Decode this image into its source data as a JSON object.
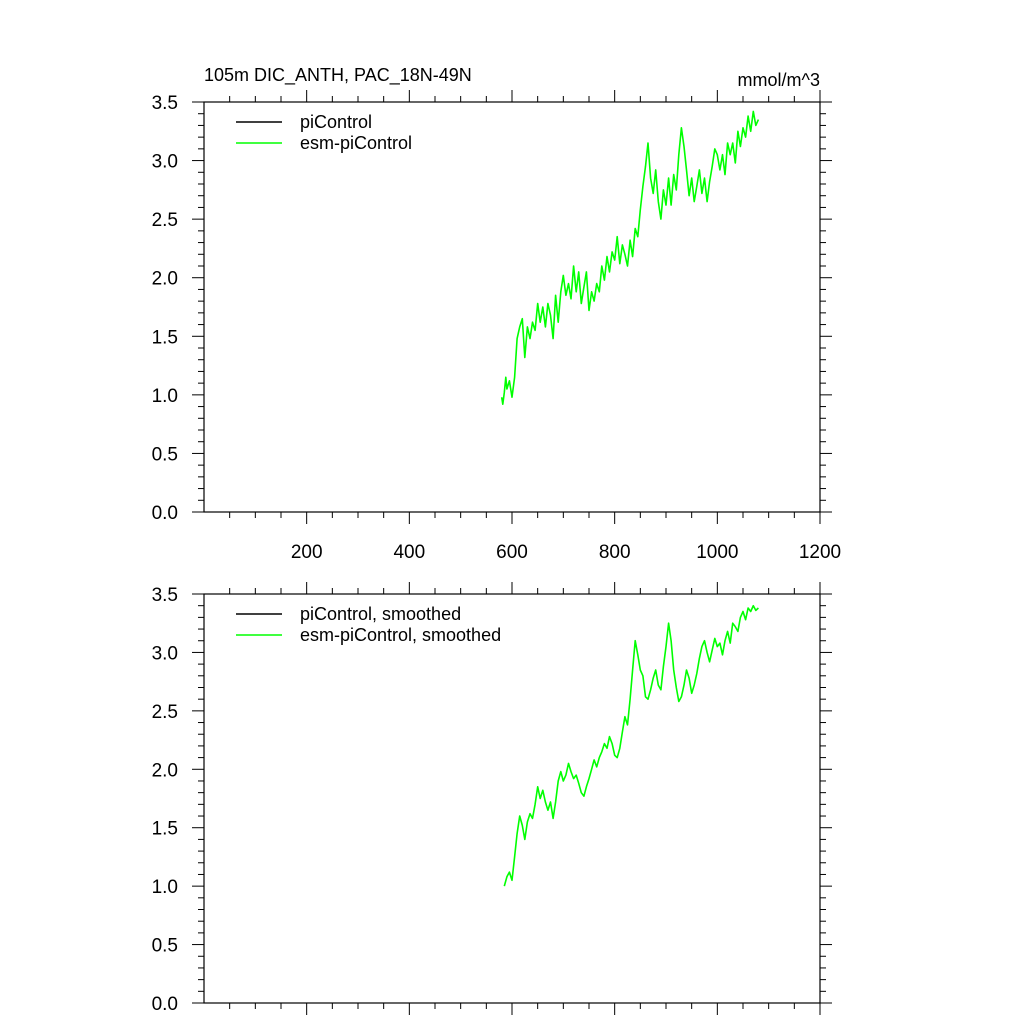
{
  "figure": {
    "title": "105m DIC_ANTH, PAC_18N-49N",
    "units": "mmol/m^3"
  },
  "colors": {
    "picontrol": "#000000",
    "esm_picontrol": "#00ff00",
    "axes": "#000000"
  },
  "chart_data": [
    {
      "type": "line",
      "panel": "top",
      "title": "105m DIC_ANTH, PAC_18N-49N",
      "units": "mmol/m^3",
      "xlim": [
        0,
        1200
      ],
      "ylim": [
        0.0,
        3.5
      ],
      "x_ticks": [
        200,
        400,
        600,
        800,
        1000,
        1200
      ],
      "x_tick_labels": [
        "200",
        "400",
        "600",
        "800",
        "1000",
        "1200"
      ],
      "y_ticks": [
        0.0,
        0.5,
        1.0,
        1.5,
        2.0,
        2.5,
        3.0,
        3.5
      ],
      "y_tick_labels": [
        "0.0",
        "0.5",
        "1.0",
        "1.5",
        "2.0",
        "2.5",
        "3.0",
        "3.5"
      ],
      "legend_position": "top-left",
      "series": [
        {
          "name": "piControl",
          "color": "#000000",
          "x": [],
          "values": []
        },
        {
          "name": "esm-piControl",
          "color": "#00ff00",
          "x": [
            580,
            582,
            585,
            588,
            590,
            595,
            600,
            605,
            610,
            615,
            620,
            625,
            630,
            635,
            640,
            645,
            650,
            655,
            660,
            665,
            670,
            675,
            680,
            685,
            690,
            695,
            700,
            705,
            710,
            715,
            720,
            725,
            730,
            735,
            740,
            745,
            750,
            755,
            760,
            765,
            770,
            775,
            780,
            785,
            790,
            795,
            800,
            805,
            810,
            815,
            820,
            825,
            830,
            835,
            840,
            845,
            850,
            855,
            860,
            865,
            870,
            875,
            880,
            885,
            890,
            895,
            900,
            905,
            910,
            915,
            920,
            925,
            930,
            935,
            940,
            945,
            950,
            955,
            960,
            965,
            970,
            975,
            980,
            985,
            990,
            995,
            1000,
            1005,
            1010,
            1015,
            1020,
            1025,
            1030,
            1035,
            1040,
            1045,
            1050,
            1055,
            1060,
            1065,
            1070,
            1075,
            1080
          ],
          "values": [
            0.98,
            0.92,
            1.02,
            1.15,
            1.05,
            1.12,
            0.98,
            1.15,
            1.48,
            1.58,
            1.65,
            1.32,
            1.58,
            1.48,
            1.62,
            1.55,
            1.78,
            1.62,
            1.75,
            1.58,
            1.78,
            1.68,
            1.48,
            1.85,
            1.62,
            1.88,
            2.02,
            1.85,
            1.95,
            1.82,
            2.1,
            1.88,
            2.05,
            1.78,
            1.92,
            2.05,
            1.72,
            1.88,
            1.8,
            1.95,
            1.88,
            2.1,
            1.98,
            2.18,
            2.05,
            2.22,
            2.15,
            2.35,
            2.12,
            2.28,
            2.2,
            2.1,
            2.32,
            2.18,
            2.42,
            2.35,
            2.58,
            2.78,
            2.95,
            3.15,
            2.85,
            2.72,
            2.92,
            2.65,
            2.5,
            2.75,
            2.62,
            2.85,
            2.62,
            2.88,
            2.75,
            3.05,
            3.28,
            3.12,
            2.92,
            2.7,
            2.85,
            2.65,
            2.78,
            2.92,
            2.72,
            2.85,
            2.65,
            2.82,
            2.95,
            3.1,
            3.05,
            2.92,
            3.05,
            2.88,
            3.15,
            3.05,
            3.15,
            2.98,
            3.25,
            3.12,
            3.28,
            3.2,
            3.38,
            3.25,
            3.42,
            3.3,
            3.35
          ]
        }
      ]
    },
    {
      "type": "line",
      "panel": "bottom",
      "title": "",
      "xlim": [
        0,
        1200
      ],
      "ylim": [
        0.0,
        3.5
      ],
      "x_ticks": [
        200,
        400,
        600,
        800,
        1000,
        1200
      ],
      "x_tick_labels": [],
      "y_ticks": [
        0.0,
        0.5,
        1.0,
        1.5,
        2.0,
        2.5,
        3.0,
        3.5
      ],
      "y_tick_labels": [
        "0.0",
        "0.5",
        "1.0",
        "1.5",
        "2.0",
        "2.5",
        "3.0",
        "3.5"
      ],
      "legend_position": "top-left",
      "series": [
        {
          "name": "piControl, smoothed",
          "color": "#000000",
          "x": [],
          "values": []
        },
        {
          "name": "esm-piControl, smoothed",
          "color": "#00ff00",
          "x": [
            585,
            590,
            595,
            600,
            605,
            610,
            615,
            620,
            625,
            630,
            635,
            640,
            645,
            650,
            655,
            660,
            665,
            670,
            675,
            680,
            685,
            690,
            695,
            700,
            705,
            710,
            715,
            720,
            725,
            730,
            735,
            740,
            745,
            750,
            755,
            760,
            765,
            770,
            775,
            780,
            785,
            790,
            795,
            800,
            805,
            810,
            815,
            820,
            825,
            830,
            835,
            840,
            845,
            850,
            855,
            860,
            865,
            870,
            875,
            880,
            885,
            890,
            895,
            900,
            905,
            910,
            915,
            920,
            925,
            930,
            935,
            940,
            945,
            950,
            955,
            960,
            965,
            970,
            975,
            980,
            985,
            990,
            995,
            1000,
            1005,
            1010,
            1015,
            1020,
            1025,
            1030,
            1035,
            1040,
            1045,
            1050,
            1055,
            1060,
            1065,
            1070,
            1075,
            1080
          ],
          "values": [
            1.0,
            1.08,
            1.12,
            1.05,
            1.25,
            1.45,
            1.6,
            1.52,
            1.4,
            1.55,
            1.62,
            1.58,
            1.7,
            1.85,
            1.75,
            1.82,
            1.72,
            1.65,
            1.72,
            1.58,
            1.72,
            1.9,
            1.98,
            1.9,
            1.95,
            2.05,
            1.98,
            1.92,
            1.95,
            1.88,
            1.8,
            1.77,
            1.85,
            1.92,
            2.0,
            2.08,
            2.02,
            2.1,
            2.15,
            2.22,
            2.18,
            2.28,
            2.22,
            2.12,
            2.1,
            2.18,
            2.32,
            2.45,
            2.38,
            2.6,
            2.85,
            3.1,
            2.98,
            2.85,
            2.8,
            2.62,
            2.6,
            2.68,
            2.78,
            2.85,
            2.72,
            2.68,
            2.88,
            3.05,
            3.25,
            3.1,
            2.85,
            2.7,
            2.58,
            2.62,
            2.72,
            2.85,
            2.78,
            2.65,
            2.72,
            2.82,
            2.95,
            3.05,
            3.1,
            3.0,
            2.92,
            3.02,
            3.12,
            3.05,
            3.08,
            2.98,
            3.1,
            3.18,
            3.08,
            3.25,
            3.22,
            3.18,
            3.3,
            3.35,
            3.28,
            3.38,
            3.35,
            3.4,
            3.36,
            3.38
          ]
        }
      ]
    }
  ]
}
